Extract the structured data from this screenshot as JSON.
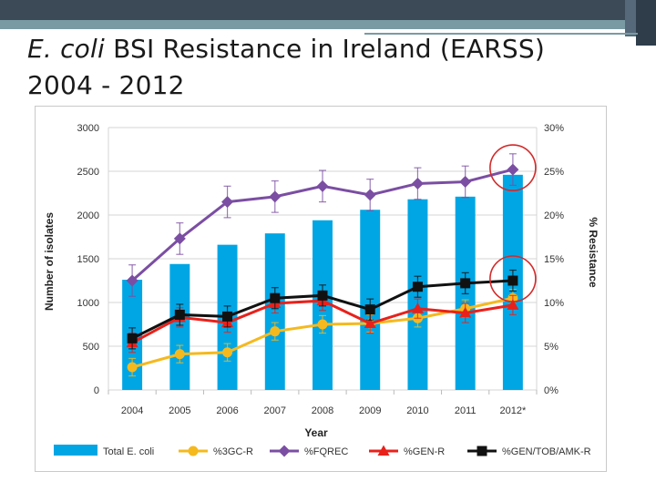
{
  "title": {
    "italic": "E. coli",
    "rest": " BSI Resistance in Ireland (EARSS)",
    "line2": "2004 - 2012"
  },
  "chart_data": {
    "type": "bar",
    "categories": [
      "2004",
      "2005",
      "2006",
      "2007",
      "2008",
      "2009",
      "2010",
      "2011",
      "2012*"
    ],
    "xlabel": "Year",
    "ylabel": "Number of isolates",
    "y2label": "% Resistance",
    "ylim": [
      0,
      3000
    ],
    "y2lim": [
      0,
      30
    ],
    "yticks": [
      "0",
      "500",
      "1000",
      "1500",
      "2000",
      "2500",
      "3000"
    ],
    "y2ticks": [
      "0%",
      "5%",
      "10%",
      "15%",
      "20%",
      "25%",
      "30%"
    ],
    "grid": true,
    "legend_position": "bottom",
    "bars": {
      "name": "Total E. coli",
      "color": "#00a6e4",
      "values": [
        1260,
        1440,
        1660,
        1790,
        1940,
        2060,
        2180,
        2210,
        2460
      ]
    },
    "series": [
      {
        "name": "%3GC-R",
        "color": "#f5b91e",
        "marker": "circle",
        "values": [
          2.6,
          4.1,
          4.3,
          6.7,
          7.5,
          7.6,
          8.2,
          9.3,
          10.5
        ],
        "err": 1.0
      },
      {
        "name": "%FQREC",
        "color": "#7b4ea3",
        "marker": "diamond",
        "values": [
          12.5,
          17.3,
          21.5,
          22.1,
          23.3,
          22.3,
          23.6,
          23.8,
          25.2
        ],
        "err": 1.8
      },
      {
        "name": "%GEN-R",
        "color": "#e8211b",
        "marker": "triangle",
        "values": [
          5.4,
          8.3,
          7.7,
          9.9,
          10.2,
          7.6,
          9.3,
          8.8,
          9.7
        ],
        "err": 1.1
      },
      {
        "name": "%GEN/TOB/AMK-R",
        "color": "#111111",
        "marker": "square",
        "values": [
          5.9,
          8.6,
          8.4,
          10.5,
          10.8,
          9.2,
          11.8,
          12.2,
          12.5
        ],
        "err": 1.2
      }
    ],
    "annotations": [
      {
        "type": "circle-highlight",
        "target_year": "2012*",
        "y2_value": 25.2,
        "color": "#d42a2a"
      },
      {
        "type": "circle-highlight",
        "target_year": "2012*",
        "y2_value": 12.5,
        "color": "#d42a2a"
      }
    ]
  }
}
